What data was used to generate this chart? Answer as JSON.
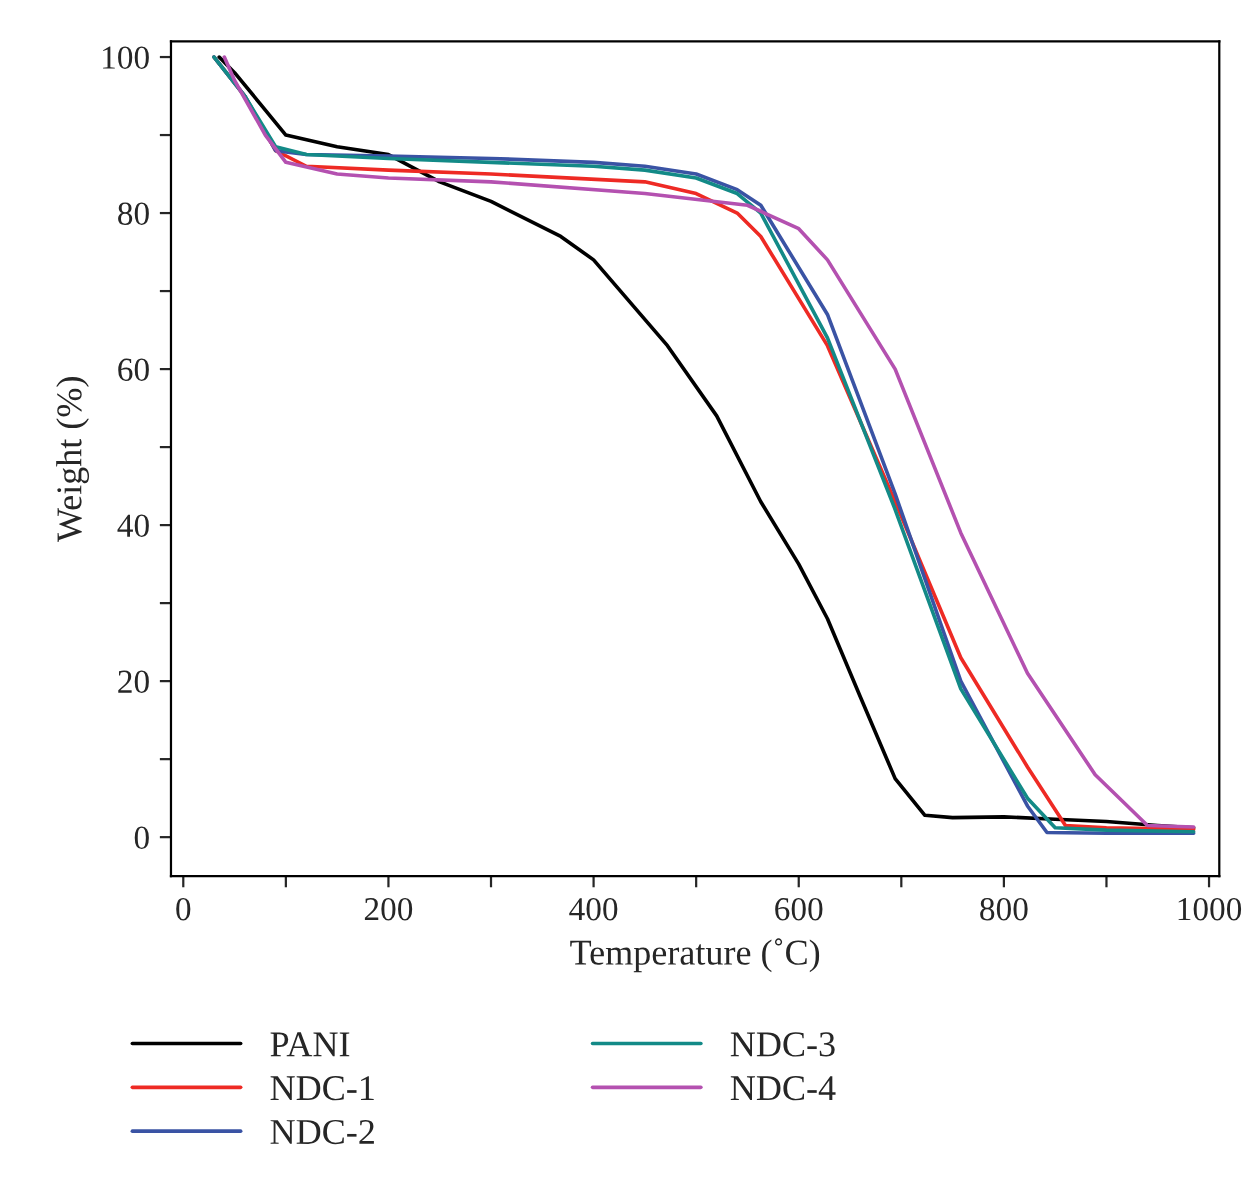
{
  "chart_data": {
    "type": "line",
    "xlabel": "Temperature (˚C)",
    "ylabel": "Weight (%)",
    "xlim": [
      -12,
      1010
    ],
    "ylim": [
      -5,
      102
    ],
    "xticks": [
      0,
      {
        "value": 100,
        "label": null
      },
      200,
      {
        "value": 300,
        "label": null
      },
      400,
      {
        "value": 500,
        "label": null
      },
      600,
      {
        "value": 700,
        "label": null
      },
      800,
      {
        "value": 900,
        "label": null
      },
      1000
    ],
    "yticks": [
      0,
      {
        "value": 10,
        "label": null
      },
      20,
      {
        "value": 30,
        "label": null
      },
      40,
      {
        "value": 50,
        "label": null
      },
      60,
      {
        "value": 70,
        "label": null
      },
      80,
      {
        "value": 90,
        "label": null
      },
      100
    ],
    "grid": false,
    "legend": "bottom",
    "marker": "none",
    "line_style": "solid",
    "series": [
      {
        "name": "PANI",
        "color": "#000000",
        "x": [
          35,
          50,
          75,
          100,
          150,
          200,
          250,
          300,
          368,
          400,
          472,
          520,
          563,
          600,
          628,
          660,
          694,
          723,
          750,
          800,
          850,
          900,
          950,
          985
        ],
        "values": [
          100,
          98,
          94,
          90,
          88.5,
          87.5,
          84,
          81.5,
          77,
          74,
          63,
          54,
          43,
          35,
          28,
          18,
          7.5,
          2.8,
          2.5,
          2.6,
          2.3,
          2,
          1.5,
          1.2
        ]
      },
      {
        "name": "NDC-1",
        "color": "#ee2a24",
        "x": [
          30,
          60,
          90,
          120,
          200,
          300,
          450,
          500,
          540,
          563,
          628,
          694,
          758,
          823,
          860,
          900,
          985
        ],
        "values": [
          100,
          95,
          88,
          86,
          85.5,
          85,
          84,
          82.5,
          80,
          77,
          63,
          43,
          23,
          9,
          1.5,
          1.2,
          1
        ]
      },
      {
        "name": "NDC-2",
        "color": "#3a53a4",
        "x": [
          30,
          60,
          90,
          120,
          200,
          300,
          400,
          450,
          500,
          540,
          563,
          628,
          694,
          758,
          823,
          842,
          900,
          985
        ],
        "values": [
          100,
          95,
          88,
          87.5,
          87.3,
          87,
          86.5,
          86,
          85,
          83,
          81,
          67,
          44,
          20,
          4,
          0.6,
          0.5,
          0.5
        ]
      },
      {
        "name": "NDC-3",
        "color": "#138a87",
        "x": [
          30,
          60,
          90,
          120,
          200,
          300,
          400,
          450,
          500,
          540,
          563,
          628,
          694,
          758,
          823,
          850,
          900,
          985
        ],
        "values": [
          100,
          95,
          88.5,
          87.5,
          87,
          86.5,
          86,
          85.5,
          84.5,
          82.5,
          80,
          64,
          42,
          19,
          5,
          1.2,
          0.9,
          0.7
        ]
      },
      {
        "name": "NDC-4",
        "color": "#b451b0",
        "x": [
          40,
          50,
          80,
          100,
          150,
          200,
          300,
          450,
          550,
          600,
          628,
          694,
          758,
          823,
          889,
          940,
          985
        ],
        "values": [
          100,
          97,
          90,
          86.5,
          85,
          84.5,
          84,
          82.5,
          81,
          78,
          74,
          60,
          39,
          21,
          8,
          1.5,
          1.3
        ]
      }
    ]
  }
}
